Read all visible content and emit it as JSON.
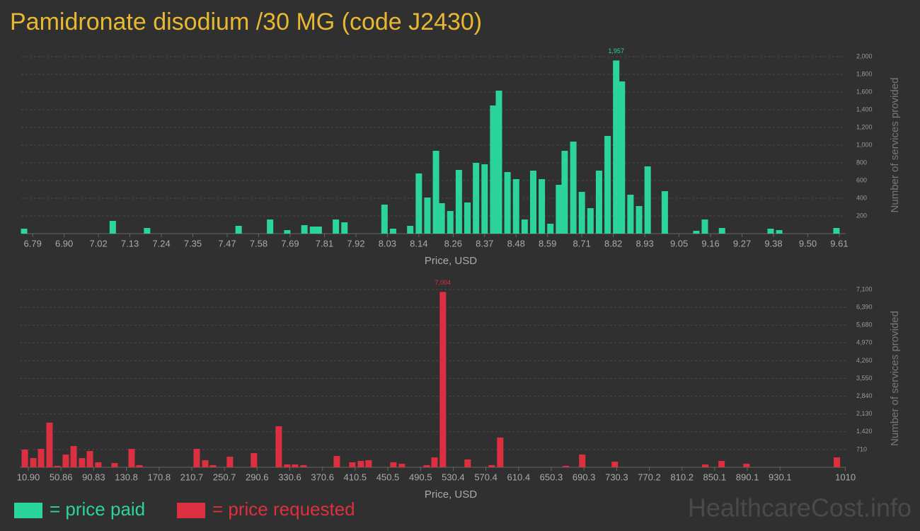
{
  "title": "Pamidronate disodium /30 MG (code J2430)",
  "watermark": "HealthcareCost.info",
  "chart_data": [
    {
      "type": "histogram",
      "xlabel": "Price, USD",
      "ylabel": "Number of services provided",
      "xlim": [
        6.75,
        9.62
      ],
      "ylim": [
        0,
        2000
      ],
      "xticks": [
        6.79,
        {
          "value": 6.9,
          "label": "6.90"
        },
        7.02,
        7.13,
        7.24,
        7.35,
        7.47,
        7.58,
        7.69,
        7.81,
        7.92,
        8.03,
        8.14,
        8.26,
        8.37,
        8.48,
        8.59,
        8.71,
        8.82,
        8.93,
        9.05,
        9.16,
        9.27,
        9.38,
        {
          "value": 9.5,
          "label": "9.50"
        },
        9.61
      ],
      "yticks": [
        200,
        400,
        600,
        800,
        {
          "value": 1000,
          "label": "1,000"
        },
        {
          "value": 1200,
          "label": "1,200"
        },
        {
          "value": 1400,
          "label": "1,400"
        },
        {
          "value": 1600,
          "label": "1,600"
        },
        {
          "value": 1800,
          "label": "1,800"
        },
        {
          "value": 2000,
          "label": "2,000"
        }
      ],
      "grid": true,
      "series": [
        {
          "name": "= price paid",
          "color": "#2bd49a",
          "x": [
            6.76,
            7.07,
            7.19,
            7.51,
            7.62,
            7.68,
            7.74,
            7.77,
            7.79,
            7.85,
            7.88,
            8.02,
            8.05,
            8.11,
            8.14,
            8.17,
            8.2,
            8.22,
            8.25,
            8.28,
            8.31,
            8.34,
            8.37,
            8.4,
            8.42,
            8.45,
            8.48,
            8.51,
            8.54,
            8.57,
            8.6,
            8.63,
            8.65,
            8.68,
            8.71,
            8.74,
            8.77,
            8.8,
            8.83,
            8.85,
            8.88,
            8.91,
            8.94,
            9.0,
            9.11,
            9.14,
            9.2,
            9.37,
            9.4,
            9.6
          ],
          "values": [
            56,
            144,
            64,
            88,
            160,
            40,
            96,
            80,
            80,
            160,
            128,
            328,
            56,
            88,
            680,
            408,
            936,
            344,
            256,
            720,
            352,
            800,
            784,
            1448,
            1616,
            696,
            616,
            160,
            712,
            616,
            112,
            552,
            936,
            1040,
            472,
            288,
            712,
            1104,
            1957,
            1720,
            440,
            312,
            760,
            480,
            32,
            160,
            64,
            56,
            40,
            64
          ],
          "value_labels": [
            null,
            null,
            null,
            null,
            null,
            null,
            null,
            null,
            null,
            null,
            null,
            null,
            null,
            null,
            null,
            null,
            null,
            null,
            null,
            null,
            null,
            null,
            null,
            null,
            null,
            null,
            null,
            null,
            null,
            null,
            null,
            null,
            null,
            null,
            null,
            null,
            null,
            null,
            "1,957",
            null,
            null,
            null,
            null,
            null,
            null,
            null,
            null,
            null,
            null,
            null
          ]
        }
      ]
    },
    {
      "type": "histogram",
      "xlabel": "Price, USD",
      "ylabel": "Number of services provided",
      "xlim": [
        0.5,
        1019
      ],
      "ylim": [
        0,
        7100
      ],
      "xticks": [
        {
          "value": 10.9,
          "label": "10.90"
        },
        50.86,
        90.83,
        130.8,
        170.8,
        210.7,
        250.7,
        290.6,
        330.6,
        370.6,
        410.5,
        450.5,
        490.5,
        530.4,
        570.4,
        610.4,
        650.3,
        690.3,
        730.3,
        770.2,
        810.2,
        850.1,
        890.1,
        930.1,
        1010
      ],
      "yticks": [
        710,
        {
          "value": 1420,
          "label": "1,420"
        },
        {
          "value": 2130,
          "label": "2,130"
        },
        {
          "value": 2840,
          "label": "2,840"
        },
        {
          "value": 3550,
          "label": "3,550"
        },
        {
          "value": 4260,
          "label": "4,260"
        },
        {
          "value": 4970,
          "label": "4,970"
        },
        {
          "value": 5680,
          "label": "5,680"
        },
        {
          "value": 6390,
          "label": "6,390"
        },
        {
          "value": 7100,
          "label": "7,100"
        }
      ],
      "grid": true,
      "series": [
        {
          "name": "= price requested",
          "color": "#dc3040",
          "x": [
            6.6,
            17,
            26.5,
            36.8,
            46.4,
            56.7,
            66.3,
            76.6,
            86.2,
            96.5,
            116.4,
            137.2,
            146.7,
            216.8,
            227.2,
            236.7,
            257.4,
            286.8,
            317.1,
            327.5,
            337,
            347.4,
            388.1,
            407.1,
            417.5,
            427,
            457.3,
            467.7,
            498,
            507.5,
            517.8,
            548.1,
            577.5,
            587.9,
            668.3,
            688.2,
            728,
            838.7,
            858.6,
            889,
            999.6
          ],
          "values": [
            707,
            368,
            735,
            1782,
            57,
            509,
            849,
            368,
            651,
            198,
            170,
            735,
            85,
            735,
            283,
            85,
            424,
            566,
            1641,
            113,
            113,
            85,
            453,
            198,
            255,
            283,
            198,
            141,
            85,
            396,
            7004,
            311,
            85,
            1188,
            57,
            509,
            226,
            113,
            255,
            141,
            396
          ],
          "value_labels": [
            null,
            null,
            null,
            null,
            null,
            null,
            null,
            null,
            null,
            null,
            null,
            null,
            null,
            null,
            null,
            null,
            null,
            null,
            null,
            null,
            null,
            null,
            null,
            null,
            null,
            null,
            null,
            null,
            null,
            null,
            "7,004",
            null,
            null,
            null,
            null,
            null,
            null,
            null,
            null,
            null,
            null
          ]
        }
      ]
    }
  ]
}
